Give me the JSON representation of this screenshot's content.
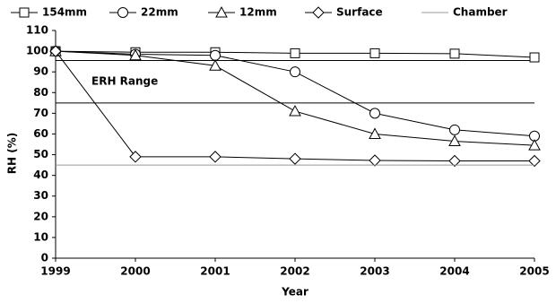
{
  "chart_data": {
    "type": "line",
    "x_label": "Year",
    "y_label": "RH (%)",
    "x": [
      1999,
      2000,
      2001,
      2002,
      2003,
      2004,
      2005
    ],
    "series": [
      {
        "name": "154mm",
        "color": "#000000",
        "marker": "square",
        "values": [
          100,
          99.5,
          99.5,
          99,
          99,
          98.8,
          97
        ]
      },
      {
        "name": "22mm",
        "color": "#000000",
        "marker": "circle",
        "values": [
          100,
          98.5,
          98,
          90,
          70,
          62,
          59
        ]
      },
      {
        "name": "12mm",
        "color": "#000000",
        "marker": "triangle",
        "values": [
          100,
          98,
          93,
          71,
          60,
          56.5,
          54.5
        ]
      },
      {
        "name": "Surface",
        "color": "#000000",
        "marker": "diamond",
        "values": [
          100,
          49,
          49,
          48,
          47.2,
          47,
          47
        ]
      },
      {
        "name": "Chamber",
        "color": "#999999",
        "marker": "none",
        "values": [
          45,
          45,
          45,
          45,
          45,
          45,
          45
        ]
      }
    ],
    "erh_range": {
      "label": "ERH Range",
      "values": [
        95.5,
        75
      ]
    },
    "xlim": [
      1999,
      2005
    ],
    "xticks": [
      1999,
      2000,
      2001,
      2002,
      2003,
      2004,
      2005
    ],
    "ylim": [
      0,
      110
    ],
    "yticks": [
      0,
      10,
      20,
      30,
      40,
      50,
      60,
      70,
      80,
      90,
      100,
      110
    ],
    "grid": false
  }
}
